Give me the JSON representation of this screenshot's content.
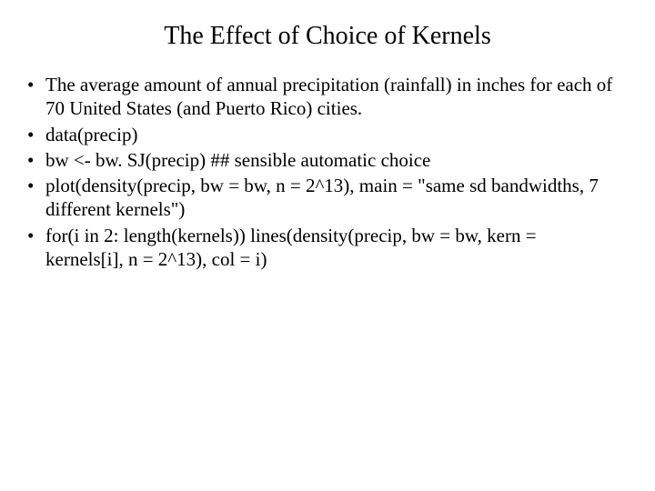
{
  "slide": {
    "title": "The Effect of Choice of Kernels",
    "bullets": [
      "The average amount of annual precipitation (rainfall) in inches for each of 70 United States (and Puerto Rico) cities.",
      "data(precip)",
      "bw <- bw. SJ(precip) ## sensible automatic choice",
      "plot(density(precip, bw = bw, n = 2^13), main = \"same sd bandwidths, 7 different kernels\")",
      "for(i in 2: length(kernels)) lines(density(precip, bw = bw, kern = kernels[i], n = 2^13), col = i)"
    ],
    "styling": {
      "background_color": "#ffffff",
      "text_color": "#000000",
      "font_family": "Times New Roman",
      "title_fontsize": 28,
      "body_fontsize": 21,
      "bullet_marker": "•"
    }
  }
}
